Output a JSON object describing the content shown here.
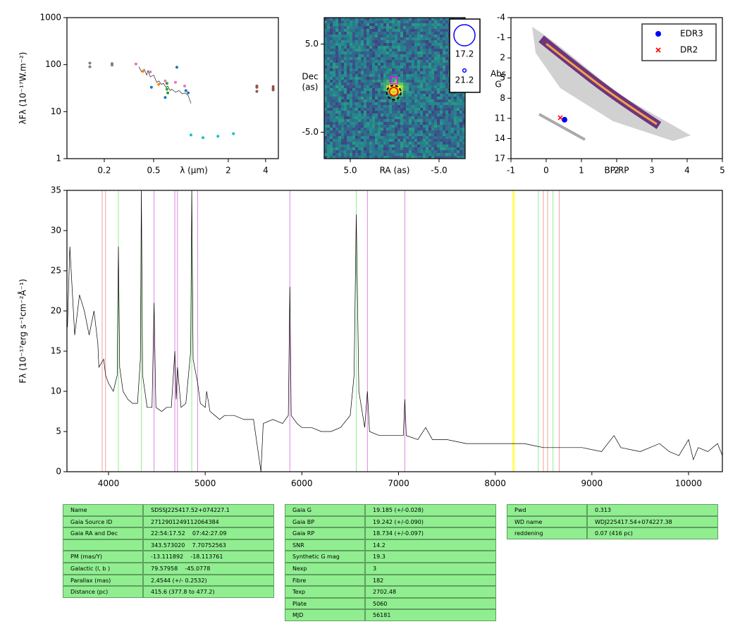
{
  "chart_data": [
    {
      "type": "scatter",
      "xlog": true,
      "ylog": true,
      "xlim": [
        0.1,
        5.07
      ],
      "ylim": [
        1,
        1000
      ],
      "xticks": [
        0.2,
        0.5,
        2,
        4
      ],
      "yticks": [
        1,
        10,
        100,
        1000
      ],
      "xlabel": "λ (μm)",
      "ylabel": "λFλ (10⁻¹⁷W.m⁻²)",
      "series": [
        {
          "mode": "line",
          "color": "#000000",
          "x": [
            0.38,
            0.4,
            0.42,
            0.44,
            0.45,
            0.47,
            0.5,
            0.53,
            0.55,
            0.58,
            0.6,
            0.63,
            0.65,
            0.68,
            0.7,
            0.75,
            0.8,
            0.85,
            0.9,
            0.95,
            1.0
          ],
          "values": [
            90,
            70,
            80,
            60,
            75,
            55,
            60,
            42,
            45,
            38,
            40,
            33,
            35,
            28,
            30,
            26,
            28,
            24,
            25,
            22,
            15
          ]
        },
        {
          "mode": "dot",
          "color": "#7f7f7f",
          "x": [
            0.153,
            0.153,
            0.231,
            0.231
          ],
          "values": [
            108,
            90,
            105,
            98
          ]
        },
        {
          "mode": "dot",
          "color": "#e377c2",
          "x": [
            0.36,
            0.47,
            0.62,
            0.75,
            0.89
          ],
          "values": [
            103,
            70,
            45,
            42,
            35
          ]
        },
        {
          "mode": "dot",
          "color": "#ff7f0e",
          "x": [
            0.41,
            0.55
          ],
          "values": [
            72,
            38
          ]
        },
        {
          "mode": "dot",
          "color": "#1f77b4",
          "x": [
            0.48,
            0.62,
            0.77,
            0.91,
            0.95
          ],
          "values": [
            33,
            20,
            88,
            28,
            25
          ]
        },
        {
          "mode": "dot",
          "color": "#2ca02c",
          "x": [
            0.64,
            0.64,
            0.65
          ],
          "values": [
            40,
            30,
            25
          ]
        },
        {
          "mode": "dot",
          "color": "#17becf",
          "x": [
            1.0,
            1.25,
            1.65,
            2.2
          ],
          "values": [
            3.2,
            2.8,
            3.0,
            3.4
          ]
        },
        {
          "mode": "dot",
          "color": "#8c564b",
          "x": [
            3.4,
            3.4,
            3.4,
            4.6,
            4.6,
            4.6
          ],
          "values": [
            35,
            33,
            27,
            34,
            31,
            29
          ]
        }
      ]
    },
    {
      "type": "image",
      "xlim": [
        7.94,
        -7.94
      ],
      "ylim": [
        -8,
        8
      ],
      "xticks": [
        {
          "value": 5,
          "label": "5.0"
        },
        {
          "value": -5,
          "label": "-5.0"
        }
      ],
      "yticks": [
        {
          "value": 5,
          "label": "5.0"
        },
        {
          "value": -5,
          "label": "-5.0"
        }
      ],
      "xlabel": "RA (as)",
      "ylabel": [
        "Dec",
        "(as)"
      ],
      "markers": [
        {
          "shape": "dashed-circle",
          "color": "#000000",
          "x": 0.1,
          "y": -0.5
        },
        {
          "shape": "circle",
          "color": "#ff0000",
          "x": 0.1,
          "y": -0.4
        },
        {
          "shape": "small-circle",
          "color": "#ffd700",
          "x": 0.1,
          "y": -0.4
        },
        {
          "shape": "square",
          "color": "#ff00ff",
          "x": 0.1,
          "y": 0.9
        }
      ],
      "legend": [
        {
          "value": 17.2,
          "color": "#0000ff"
        },
        {
          "value": 21.2,
          "color": "#0000ff"
        }
      ]
    },
    {
      "type": "scatter",
      "xlim": [
        -1,
        5
      ],
      "ylim": [
        17,
        -4
      ],
      "xticks": [
        -1,
        0,
        1,
        2,
        3,
        4,
        5
      ],
      "yticks": [
        -4,
        -1,
        2,
        5,
        8,
        11,
        14,
        17
      ],
      "xlabel": "BP-RP",
      "ylabel": [
        "Abs",
        "G"
      ],
      "legend": "upper right",
      "series": [
        {
          "name": "EDR3",
          "mode": "dot",
          "marker": "circle",
          "color": "#0000ff",
          "x": [
            0.52
          ],
          "values": [
            11.2
          ]
        },
        {
          "name": "DR2",
          "mode": "dot",
          "marker": "x",
          "color": "#ff0000",
          "x": [
            0.4
          ],
          "values": [
            10.9
          ]
        }
      ]
    },
    {
      "type": "line",
      "xlim": [
        3570,
        10350
      ],
      "ylim": [
        0,
        35
      ],
      "xticks": [
        4000,
        5000,
        6000,
        7000,
        8000,
        9000,
        10000
      ],
      "yticks": [
        0,
        5,
        10,
        15,
        20,
        25,
        30,
        35
      ],
      "ylabel": "Fλ (10⁻¹⁷erg s⁻¹cm⁻²Å⁻¹)",
      "color": "#000000",
      "x": [
        3575,
        3600,
        3650,
        3700,
        3750,
        3800,
        3850,
        3889,
        3900,
        3950,
        3970,
        4000,
        4050,
        4090,
        4102,
        4115,
        4150,
        4200,
        4250,
        4300,
        4330,
        4340,
        4352,
        4400,
        4450,
        4471,
        4490,
        4550,
        4600,
        4650,
        4686,
        4700,
        4713,
        4750,
        4800,
        4850,
        4861,
        4875,
        4922,
        4950,
        5000,
        5015,
        5050,
        5100,
        5150,
        5200,
        5300,
        5400,
        5500,
        5577,
        5600,
        5700,
        5800,
        5860,
        5876,
        5890,
        5950,
        6000,
        6100,
        6200,
        6300,
        6400,
        6500,
        6540,
        6563,
        6590,
        6650,
        6678,
        6700,
        6800,
        6900,
        7050,
        7065,
        7080,
        7200,
        7281,
        7350,
        7500,
        7700,
        7900,
        8100,
        8300,
        8500,
        8700,
        8900,
        9100,
        9229,
        9300,
        9500,
        9700,
        9800,
        9900,
        10000,
        10050,
        10100,
        10200,
        10300,
        10350
      ],
      "values": [
        18,
        28,
        17,
        22,
        20,
        17,
        20,
        16,
        13,
        14,
        12,
        11,
        10,
        12,
        28,
        13,
        10,
        9,
        8.5,
        8.5,
        14,
        35,
        12,
        8,
        8,
        21,
        8,
        7.5,
        8,
        8,
        15,
        9,
        13,
        8,
        8.5,
        15,
        35,
        14,
        11,
        8.5,
        8,
        10,
        7.5,
        7,
        6.5,
        7,
        7,
        6.5,
        6.5,
        0,
        6,
        6.5,
        6,
        7,
        23,
        7,
        6,
        5.5,
        5.5,
        5,
        5,
        5.5,
        7,
        12,
        32,
        10,
        5.5,
        10,
        5,
        4.5,
        4.5,
        4.5,
        9,
        4.5,
        4,
        5.5,
        4,
        4,
        3.5,
        3.5,
        3.5,
        3.5,
        3,
        3,
        3,
        2.5,
        4.5,
        3,
        2.5,
        3.5,
        2.5,
        2,
        4,
        1.5,
        3,
        2.5,
        3.5,
        2
      ],
      "vlines": [
        {
          "x": 3934,
          "color": "#f4a0a0"
        },
        {
          "x": 3969,
          "color": "#f4a0a0"
        },
        {
          "x": 4102,
          "color": "#90ee90"
        },
        {
          "x": 4340,
          "color": "#90ee90"
        },
        {
          "x": 4471,
          "color": "#dd88dd"
        },
        {
          "x": 4686,
          "color": "#dd88dd"
        },
        {
          "x": 4713,
          "color": "#dd88dd"
        },
        {
          "x": 4861,
          "color": "#90ee90"
        },
        {
          "x": 4922,
          "color": "#dd88dd"
        },
        {
          "x": 5876,
          "color": "#dd88dd"
        },
        {
          "x": 6563,
          "color": "#90ee90"
        },
        {
          "x": 6678,
          "color": "#dd88dd"
        },
        {
          "x": 7065,
          "color": "#dd88dd"
        },
        {
          "x": 8183,
          "color": "#ffff00"
        },
        {
          "x": 8195,
          "color": "#ffff00"
        },
        {
          "x": 8446,
          "color": "#90ee90"
        },
        {
          "x": 8498,
          "color": "#f4a0a0"
        },
        {
          "x": 8542,
          "color": "#f4a0a0"
        },
        {
          "x": 8598,
          "color": "#90ee90"
        },
        {
          "x": 8662,
          "color": "#f4a0a0"
        }
      ]
    }
  ],
  "tables": [
    {
      "rows": [
        [
          "Name",
          "SDSSJ225417.52+074227.1"
        ],
        [
          "Gaia Source ID",
          "2712901249112064384"
        ],
        [
          "Gaia RA and Dec",
          "22:54:17.52    07:42:27.09"
        ],
        [
          null,
          "343.573020    7.70752563"
        ],
        [
          "PM (mas/Y)",
          "-13.111892    -18.113761"
        ],
        [
          "Galactic (l, b )",
          "79.57958    -45.0778"
        ],
        [
          "Parallax (mas)",
          "2.4544 (+/- 0.2532)"
        ],
        [
          "Distance (pc)",
          "415.6 (377.8 to 477.2)"
        ]
      ]
    },
    {
      "rows": [
        [
          "Gaia G",
          "19.185 (+/-0.028)"
        ],
        [
          "Gaia BP",
          "19.242 (+/-0.090)"
        ],
        [
          "Gaia RP",
          "18.734 (+/-0.097)"
        ],
        [
          "SNR",
          "14.2"
        ],
        [
          "Synthetic G mag",
          "19.3"
        ],
        [
          "Nexp",
          "3"
        ],
        [
          "Fibre",
          "182"
        ],
        [
          "Texp",
          "2702.48"
        ],
        [
          "Plate",
          "5060"
        ],
        [
          "MJD",
          "56181"
        ]
      ]
    },
    {
      "rows": [
        [
          "Pwd",
          "0.313"
        ],
        [
          "WD name",
          "WDJ225417.54+074227.38"
        ],
        [
          "reddening",
          "0.07 (416 pc)"
        ]
      ]
    }
  ]
}
